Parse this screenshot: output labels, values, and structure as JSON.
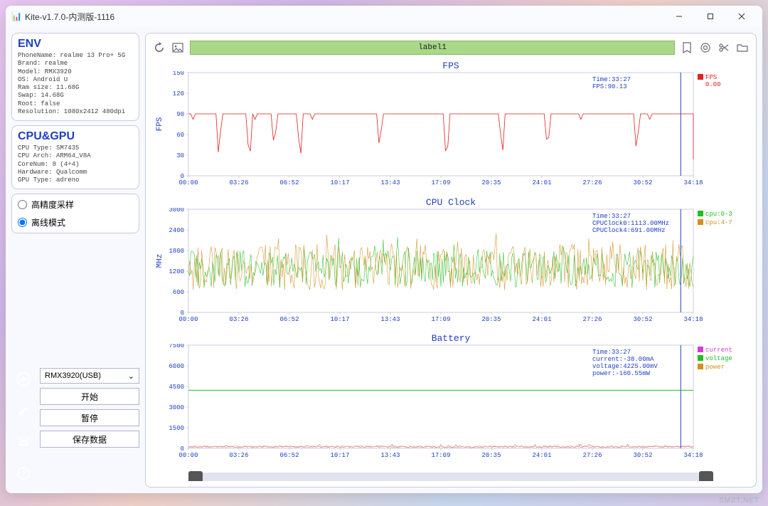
{
  "window": {
    "title": "Kite-v1.7.0-内测版-1116"
  },
  "env": {
    "heading": "ENV",
    "lines": [
      "PhoneName: realme 13 Pro+ 5G",
      "Brand: realme",
      "Model: RMX3920",
      "OS: Android U",
      "Ram size: 11.68G",
      "Swap: 14.68G",
      "Root: false",
      "Resolution: 1080x2412 480dpi"
    ]
  },
  "cpugpu": {
    "heading": "CPU&GPU",
    "lines": [
      "CPU Type: SM7435",
      "CPU Arch: ARM64_V8A",
      "CoreNum: 8 (4+4)",
      "Hardware: Qualcomm",
      "GPU Type: adreno"
    ]
  },
  "radios": {
    "opt1": "高精度采样",
    "opt2": "离线模式",
    "selected": "opt2"
  },
  "device_combo": {
    "value": "RMX3920(USB)"
  },
  "buttons": {
    "start": "开始",
    "pause": "暂停",
    "save": "保存数据"
  },
  "topbar": {
    "label": "label1"
  },
  "xticks": [
    "00:00",
    "03:26",
    "06:52",
    "10:17",
    "13:43",
    "17:09",
    "20:35",
    "24:01",
    "27:26",
    "30:52",
    "34:18"
  ],
  "charts": {
    "fps": {
      "title": "FPS",
      "ylabel": "FPS",
      "ylim": [
        0,
        150
      ],
      "ytick_step": 30,
      "series": [
        {
          "name": "FPS",
          "color": "#e02020",
          "legend_value": "0.00"
        }
      ],
      "annot": [
        "Time:33:27",
        "FPS:90.13"
      ],
      "cursor_x": 0.975,
      "baseline": 90,
      "dips": [
        0.06,
        0.12,
        0.17,
        0.22,
        0.38,
        0.51,
        0.62,
        0.71,
        0.89
      ]
    },
    "cpu": {
      "title": "CPU Clock",
      "ylabel": "MHz",
      "ylim": [
        0,
        3000
      ],
      "ytick_step": 600,
      "series": [
        {
          "name": "cpu:0-3",
          "color": "#20c020"
        },
        {
          "name": "cpu:4-7",
          "color": "#d09020"
        }
      ],
      "annot": [
        "Time:33:27",
        "CPUClock0:1113.00MHz",
        "CPUClock4:691.00MHz"
      ],
      "cursor_x": 0.975,
      "band": [
        700,
        1800
      ]
    },
    "battery": {
      "title": "Battery",
      "ylabel": "",
      "ylim": [
        0,
        7500
      ],
      "ytick_step": 1500,
      "series": [
        {
          "name": "current",
          "color": "#d040d0"
        },
        {
          "name": "voltage",
          "color": "#20c020"
        },
        {
          "name": "power",
          "color": "#d09020"
        }
      ],
      "annot": [
        "Time:33:27",
        "current:-38.00mA",
        "voltage:4225.00mV",
        "power:-160.55mW"
      ],
      "cursor_x": 0.975,
      "voltage_line": 4225
    }
  },
  "colors": {
    "axis": "#a8aed0",
    "accent": "#2040c0",
    "labelbar": "#a8d888",
    "grid": "#e8eaf4"
  },
  "watermark": "SMZT.NET"
}
